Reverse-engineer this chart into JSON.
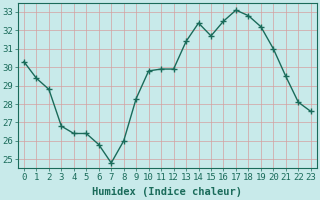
{
  "x": [
    0,
    1,
    2,
    3,
    4,
    5,
    6,
    7,
    8,
    9,
    10,
    11,
    12,
    13,
    14,
    15,
    16,
    17,
    18,
    19,
    20,
    21,
    22,
    23
  ],
  "y": [
    30.3,
    29.4,
    28.8,
    26.8,
    26.4,
    26.4,
    25.8,
    24.8,
    26.0,
    28.3,
    29.8,
    29.9,
    29.9,
    31.4,
    32.4,
    31.7,
    32.5,
    33.1,
    32.8,
    32.2,
    31.0,
    29.5,
    28.1,
    27.6
  ],
  "line_color": "#1a6b5a",
  "marker": "+",
  "marker_size": 4,
  "marker_lw": 1.0,
  "bg_color": "#c8eaea",
  "grid_color": "#d4a0a0",
  "xlabel": "Humidex (Indice chaleur)",
  "ylim": [
    24.5,
    33.5
  ],
  "xlim": [
    -0.5,
    23.5
  ],
  "yticks": [
    25,
    26,
    27,
    28,
    29,
    30,
    31,
    32,
    33
  ],
  "xticks": [
    0,
    1,
    2,
    3,
    4,
    5,
    6,
    7,
    8,
    9,
    10,
    11,
    12,
    13,
    14,
    15,
    16,
    17,
    18,
    19,
    20,
    21,
    22,
    23
  ],
  "tick_label_fontsize": 6.5,
  "xlabel_fontsize": 7.5,
  "line_width": 1.0,
  "text_color": "#1a6b5a",
  "spine_color": "#1a6b5a"
}
